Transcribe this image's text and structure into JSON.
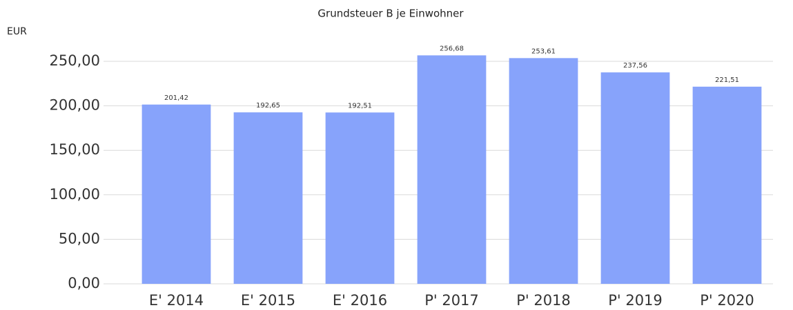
{
  "chart_data": {
    "type": "bar",
    "title": "Grundsteuer B je Einwohner",
    "y_label": "EUR",
    "categories": [
      "E' 2014",
      "E' 2015",
      "E' 2016",
      "P' 2017",
      "P' 2018",
      "P' 2019",
      "P' 2020"
    ],
    "values": [
      201.42,
      192.65,
      192.51,
      256.68,
      253.61,
      237.56,
      221.51
    ],
    "value_labels": [
      "201,42",
      "192,65",
      "192,51",
      "256,68",
      "253,61",
      "237,56",
      "221,51"
    ],
    "color": "#87a3fb",
    "ylim": [
      0,
      250
    ],
    "yticks": [
      {
        "value": 0,
        "label": "0,00"
      },
      {
        "value": 50,
        "label": "50,00"
      },
      {
        "value": 100,
        "label": "100,00"
      },
      {
        "value": 150,
        "label": "150,00"
      },
      {
        "value": 200,
        "label": "200,00"
      },
      {
        "value": 250,
        "label": "250,00"
      }
    ],
    "grid": true
  }
}
